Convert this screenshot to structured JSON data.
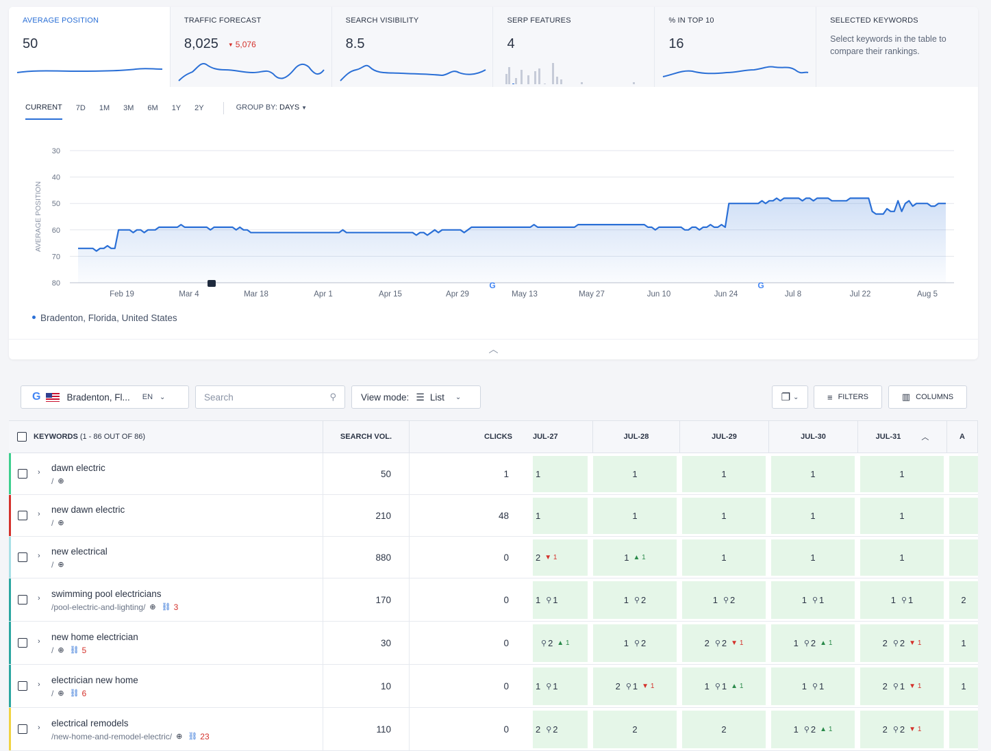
{
  "metrics": [
    {
      "label": "AVERAGE POSITION",
      "value": "50",
      "delta": ""
    },
    {
      "label": "TRAFFIC FORECAST",
      "value": "8,025",
      "delta": "5,076"
    },
    {
      "label": "SEARCH VISIBILITY",
      "value": "8.5",
      "delta": ""
    },
    {
      "label": "SERP FEATURES",
      "value": "4",
      "delta": ""
    },
    {
      "label": "% IN TOP 10",
      "value": "16",
      "delta": ""
    }
  ],
  "selected": {
    "label": "SELECTED KEYWORDS",
    "desc": "Select keywords in the table to compare their rankings."
  },
  "ranges": [
    "CURRENT",
    "7D",
    "1M",
    "3M",
    "6M",
    "1Y",
    "2Y"
  ],
  "group_by": {
    "label": "GROUP BY:",
    "value": "DAYS"
  },
  "chart_data": {
    "type": "line",
    "ylabel": "AVERAGE POSITION",
    "yticks": [
      30,
      40,
      50,
      60,
      70,
      80
    ],
    "ylim": [
      30,
      80
    ],
    "y_inverted": false,
    "xticks": [
      "Feb 19",
      "Mar 4",
      "Mar 18",
      "Apr 1",
      "Apr 15",
      "Apr 29",
      "May 13",
      "May 27",
      "Jun 10",
      "Jun 24",
      "Jul 8",
      "Jul 22",
      "Aug 5"
    ],
    "series": [
      {
        "name": "Bradenton, Florida, United States",
        "color": "#2a6fd6",
        "values": [
          67,
          67,
          67,
          67,
          67,
          68,
          67,
          67,
          66,
          67,
          67,
          60,
          60,
          60,
          60,
          61,
          60,
          60,
          61,
          60,
          60,
          60,
          59,
          59,
          59,
          59,
          59,
          59,
          58,
          59,
          59,
          59,
          59,
          59,
          59,
          59,
          60,
          59,
          59,
          59,
          59,
          59,
          59,
          60,
          59,
          60,
          60,
          61,
          61,
          61,
          61,
          61,
          61,
          61,
          61,
          61,
          61,
          61,
          61,
          61,
          61,
          61,
          61,
          61,
          61,
          61,
          61,
          61,
          61,
          61,
          61,
          61,
          60,
          61,
          61,
          61,
          61,
          61,
          61,
          61,
          61,
          61,
          61,
          61,
          61,
          61,
          61,
          61,
          61,
          61,
          61,
          61,
          62,
          61,
          61,
          62,
          61,
          60,
          61,
          60,
          60,
          60,
          60,
          60,
          60,
          61,
          60,
          59,
          59,
          59,
          59,
          59,
          59,
          59,
          59,
          59,
          59,
          59,
          59,
          59,
          59,
          59,
          59,
          59,
          58,
          59,
          59,
          59,
          59,
          59,
          59,
          59,
          59,
          59,
          59,
          59,
          58,
          58,
          58,
          58,
          58,
          58,
          58,
          58,
          58,
          58,
          58,
          58,
          58,
          58,
          58,
          58,
          58,
          58,
          58,
          59,
          59,
          60,
          59,
          59,
          59,
          59,
          59,
          59,
          59,
          60,
          60,
          59,
          59,
          60,
          59,
          59,
          58,
          59,
          59,
          58,
          59,
          50,
          50,
          50,
          50,
          50,
          50,
          50,
          50,
          50,
          49,
          50,
          49,
          49,
          48,
          49,
          48,
          48,
          48,
          48,
          48,
          49,
          48,
          48,
          49,
          48,
          48,
          48,
          48,
          49,
          49,
          49,
          49,
          49,
          48,
          48,
          48,
          48,
          48,
          48,
          53,
          54,
          54,
          54,
          52,
          53,
          53,
          49,
          53,
          50,
          49,
          51,
          50,
          50,
          50,
          50,
          51,
          51,
          50,
          50,
          50
        ]
      }
    ],
    "annotations": [
      {
        "type": "note",
        "x": "Mar 4"
      },
      {
        "type": "google",
        "x": "May 13"
      },
      {
        "type": "google",
        "x": "Jul 8"
      }
    ]
  },
  "legend": "Bradenton, Florida, United States",
  "toolbar": {
    "location": "Bradenton, Fl...",
    "lang": "EN",
    "search_placeholder": "Search",
    "view_mode_label": "View mode:",
    "view_mode_value": "List",
    "filters": "FILTERS",
    "columns": "COLUMNS"
  },
  "table": {
    "kw_header": "KEYWORDS",
    "kw_count": "(1 - 86 OUT OF 86)",
    "vol_header": "SEARCH VOL.",
    "clicks_header": "CLICKS",
    "days": [
      "JUL-27",
      "JUL-28",
      "JUL-29",
      "JUL-30",
      "JUL-31",
      "A"
    ],
    "rows": [
      {
        "keyword": "dawn electric",
        "url": "/",
        "links": "",
        "vol": "50",
        "clicks": "1",
        "mark": "#3ccf8e",
        "cells": [
          {
            "pos": "1"
          },
          {
            "pos": "1"
          },
          {
            "pos": "1"
          },
          {
            "pos": "1"
          },
          {
            "pos": "1"
          },
          {
            "pos": ""
          }
        ]
      },
      {
        "keyword": "new dawn electric",
        "url": "/",
        "links": "",
        "vol": "210",
        "clicks": "48",
        "mark": "#d4312b",
        "cells": [
          {
            "pos": "1"
          },
          {
            "pos": "1"
          },
          {
            "pos": "1"
          },
          {
            "pos": "1"
          },
          {
            "pos": "1"
          },
          {
            "pos": ""
          }
        ]
      },
      {
        "keyword": "new electrical",
        "url": "/",
        "links": "",
        "vol": "880",
        "clicks": "0",
        "mark": "#a8e0e6",
        "cells": [
          {
            "pos": "2",
            "dn": "1"
          },
          {
            "pos": "1",
            "up": "1"
          },
          {
            "pos": "1"
          },
          {
            "pos": "1"
          },
          {
            "pos": "1"
          },
          {
            "pos": ""
          }
        ]
      },
      {
        "keyword": "swimming pool electricians",
        "url": "/pool-electric-and-lighting/",
        "links": "3",
        "vol": "170",
        "clicks": "0",
        "mark": "#2aa6a0",
        "cells": [
          {
            "pos": "1",
            "map": "1"
          },
          {
            "pos": "1",
            "map": "2"
          },
          {
            "pos": "1",
            "map": "2"
          },
          {
            "pos": "1",
            "map": "1"
          },
          {
            "pos": "1",
            "map": "1"
          },
          {
            "pos": "2"
          }
        ]
      },
      {
        "keyword": "new home electrician",
        "url": "/",
        "links": "5",
        "vol": "30",
        "clicks": "0",
        "mark": "#2aa6a0",
        "cells": [
          {
            "pos": "",
            "map": "2",
            "up": "1"
          },
          {
            "pos": "1",
            "map": "2"
          },
          {
            "pos": "2",
            "map": "2",
            "dn": "1"
          },
          {
            "pos": "1",
            "map": "2",
            "up": "1"
          },
          {
            "pos": "2",
            "map": "2",
            "dn": "1"
          },
          {
            "pos": "1"
          }
        ]
      },
      {
        "keyword": "electrician new home",
        "url": "/",
        "links": "6",
        "vol": "10",
        "clicks": "0",
        "mark": "#2aa6a0",
        "cells": [
          {
            "pos": "1",
            "map": "1"
          },
          {
            "pos": "2",
            "map": "1",
            "dn": "1"
          },
          {
            "pos": "1",
            "map": "1",
            "up": "1"
          },
          {
            "pos": "1",
            "map": "1"
          },
          {
            "pos": "2",
            "map": "1",
            "dn": "1"
          },
          {
            "pos": "1"
          }
        ]
      },
      {
        "keyword": "electrical remodels",
        "url": "/new-home-and-remodel-electric/",
        "links": "23",
        "vol": "110",
        "clicks": "0",
        "mark": "#f0d341",
        "cells": [
          {
            "pos": "2",
            "map": "2"
          },
          {
            "pos": "2"
          },
          {
            "pos": "2"
          },
          {
            "pos": "1",
            "map": "2",
            "up": "1"
          },
          {
            "pos": "2",
            "map": "2",
            "dn": "1"
          },
          {
            "pos": ""
          }
        ]
      }
    ]
  }
}
